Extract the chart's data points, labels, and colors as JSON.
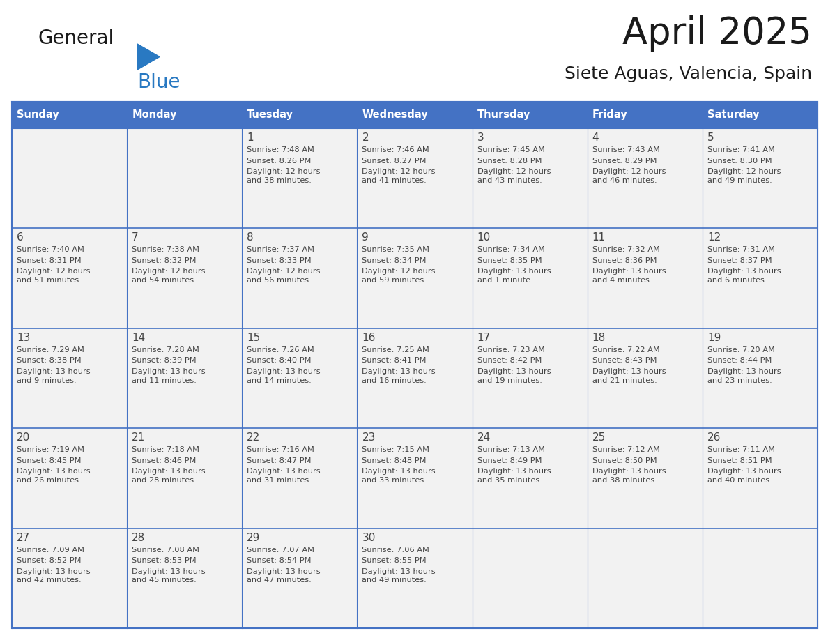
{
  "title": "April 2025",
  "subtitle": "Siete Aguas, Valencia, Spain",
  "header_bg": "#4472C4",
  "header_text_color": "#FFFFFF",
  "row_bg": "#F2F2F2",
  "cell_border_color": "#4472C4",
  "day_headers": [
    "Sunday",
    "Monday",
    "Tuesday",
    "Wednesday",
    "Thursday",
    "Friday",
    "Saturday"
  ],
  "weeks": [
    {
      "days": [
        {
          "date": "",
          "sunrise": "",
          "sunset": "",
          "daylight": ""
        },
        {
          "date": "",
          "sunrise": "",
          "sunset": "",
          "daylight": ""
        },
        {
          "date": "1",
          "sunrise": "7:48 AM",
          "sunset": "8:26 PM",
          "daylight": "12 hours\nand 38 minutes."
        },
        {
          "date": "2",
          "sunrise": "7:46 AM",
          "sunset": "8:27 PM",
          "daylight": "12 hours\nand 41 minutes."
        },
        {
          "date": "3",
          "sunrise": "7:45 AM",
          "sunset": "8:28 PM",
          "daylight": "12 hours\nand 43 minutes."
        },
        {
          "date": "4",
          "sunrise": "7:43 AM",
          "sunset": "8:29 PM",
          "daylight": "12 hours\nand 46 minutes."
        },
        {
          "date": "5",
          "sunrise": "7:41 AM",
          "sunset": "8:30 PM",
          "daylight": "12 hours\nand 49 minutes."
        }
      ]
    },
    {
      "days": [
        {
          "date": "6",
          "sunrise": "7:40 AM",
          "sunset": "8:31 PM",
          "daylight": "12 hours\nand 51 minutes."
        },
        {
          "date": "7",
          "sunrise": "7:38 AM",
          "sunset": "8:32 PM",
          "daylight": "12 hours\nand 54 minutes."
        },
        {
          "date": "8",
          "sunrise": "7:37 AM",
          "sunset": "8:33 PM",
          "daylight": "12 hours\nand 56 minutes."
        },
        {
          "date": "9",
          "sunrise": "7:35 AM",
          "sunset": "8:34 PM",
          "daylight": "12 hours\nand 59 minutes."
        },
        {
          "date": "10",
          "sunrise": "7:34 AM",
          "sunset": "8:35 PM",
          "daylight": "13 hours\nand 1 minute."
        },
        {
          "date": "11",
          "sunrise": "7:32 AM",
          "sunset": "8:36 PM",
          "daylight": "13 hours\nand 4 minutes."
        },
        {
          "date": "12",
          "sunrise": "7:31 AM",
          "sunset": "8:37 PM",
          "daylight": "13 hours\nand 6 minutes."
        }
      ]
    },
    {
      "days": [
        {
          "date": "13",
          "sunrise": "7:29 AM",
          "sunset": "8:38 PM",
          "daylight": "13 hours\nand 9 minutes."
        },
        {
          "date": "14",
          "sunrise": "7:28 AM",
          "sunset": "8:39 PM",
          "daylight": "13 hours\nand 11 minutes."
        },
        {
          "date": "15",
          "sunrise": "7:26 AM",
          "sunset": "8:40 PM",
          "daylight": "13 hours\nand 14 minutes."
        },
        {
          "date": "16",
          "sunrise": "7:25 AM",
          "sunset": "8:41 PM",
          "daylight": "13 hours\nand 16 minutes."
        },
        {
          "date": "17",
          "sunrise": "7:23 AM",
          "sunset": "8:42 PM",
          "daylight": "13 hours\nand 19 minutes."
        },
        {
          "date": "18",
          "sunrise": "7:22 AM",
          "sunset": "8:43 PM",
          "daylight": "13 hours\nand 21 minutes."
        },
        {
          "date": "19",
          "sunrise": "7:20 AM",
          "sunset": "8:44 PM",
          "daylight": "13 hours\nand 23 minutes."
        }
      ]
    },
    {
      "days": [
        {
          "date": "20",
          "sunrise": "7:19 AM",
          "sunset": "8:45 PM",
          "daylight": "13 hours\nand 26 minutes."
        },
        {
          "date": "21",
          "sunrise": "7:18 AM",
          "sunset": "8:46 PM",
          "daylight": "13 hours\nand 28 minutes."
        },
        {
          "date": "22",
          "sunrise": "7:16 AM",
          "sunset": "8:47 PM",
          "daylight": "13 hours\nand 31 minutes."
        },
        {
          "date": "23",
          "sunrise": "7:15 AM",
          "sunset": "8:48 PM",
          "daylight": "13 hours\nand 33 minutes."
        },
        {
          "date": "24",
          "sunrise": "7:13 AM",
          "sunset": "8:49 PM",
          "daylight": "13 hours\nand 35 minutes."
        },
        {
          "date": "25",
          "sunrise": "7:12 AM",
          "sunset": "8:50 PM",
          "daylight": "13 hours\nand 38 minutes."
        },
        {
          "date": "26",
          "sunrise": "7:11 AM",
          "sunset": "8:51 PM",
          "daylight": "13 hours\nand 40 minutes."
        }
      ]
    },
    {
      "days": [
        {
          "date": "27",
          "sunrise": "7:09 AM",
          "sunset": "8:52 PM",
          "daylight": "13 hours\nand 42 minutes."
        },
        {
          "date": "28",
          "sunrise": "7:08 AM",
          "sunset": "8:53 PM",
          "daylight": "13 hours\nand 45 minutes."
        },
        {
          "date": "29",
          "sunrise": "7:07 AM",
          "sunset": "8:54 PM",
          "daylight": "13 hours\nand 47 minutes."
        },
        {
          "date": "30",
          "sunrise": "7:06 AM",
          "sunset": "8:55 PM",
          "daylight": "13 hours\nand 49 minutes."
        },
        {
          "date": "",
          "sunrise": "",
          "sunset": "",
          "daylight": ""
        },
        {
          "date": "",
          "sunrise": "",
          "sunset": "",
          "daylight": ""
        },
        {
          "date": "",
          "sunrise": "",
          "sunset": "",
          "daylight": ""
        }
      ]
    }
  ],
  "logo_general_color": "#1a1a1a",
  "logo_blue_color": "#2979C2",
  "logo_triangle_color": "#2979C2",
  "text_color_dark": "#444444",
  "title_color": "#1a1a1a",
  "subtitle_color": "#1a1a1a"
}
